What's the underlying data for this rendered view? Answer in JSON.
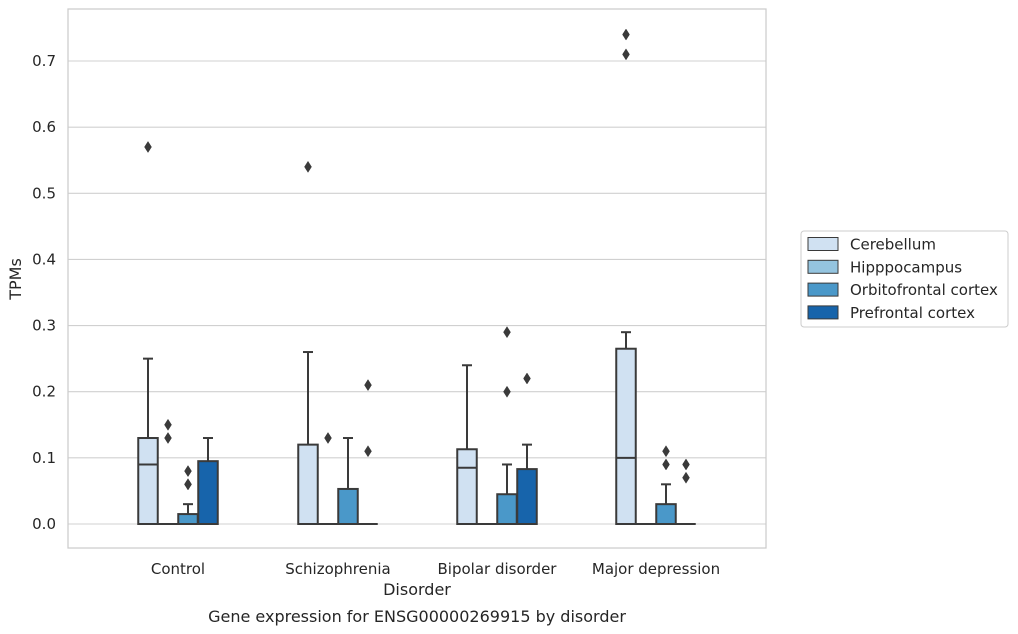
{
  "caption": "Gene expression for ENSG00000269915 by disorder",
  "chart_data": {
    "type": "box",
    "xlabel": "Disorder",
    "ylabel": "TPMs",
    "ylim": [
      -0.036,
      0.78
    ],
    "yticks": [
      "0.0",
      "0.1",
      "0.2",
      "0.3",
      "0.4",
      "0.5",
      "0.6",
      "0.7"
    ],
    "ytick_values": [
      0.0,
      0.1,
      0.2,
      0.3,
      0.4,
      0.5,
      0.6,
      0.7
    ],
    "grid": "horizontal",
    "legend_position": "right",
    "categories": [
      "Control",
      "Schizophrenia",
      "Bipolar disorder",
      "Major depression"
    ],
    "series": [
      {
        "name": "Cerebellum",
        "color": "#d0e1f2",
        "boxes": [
          {
            "q1": 0.0,
            "median": 0.09,
            "q3": 0.13,
            "whisker_low": 0.0,
            "whisker_high": 0.25,
            "outliers": [
              0.57
            ]
          },
          {
            "q1": 0.0,
            "median": 0.0,
            "q3": 0.12,
            "whisker_low": 0.0,
            "whisker_high": 0.26,
            "outliers": [
              0.54
            ]
          },
          {
            "q1": 0.0,
            "median": 0.085,
            "q3": 0.113,
            "whisker_low": 0.0,
            "whisker_high": 0.24,
            "outliers": []
          },
          {
            "q1": 0.0,
            "median": 0.1,
            "q3": 0.265,
            "whisker_low": 0.0,
            "whisker_high": 0.29,
            "outliers": [
              0.71,
              0.74
            ]
          }
        ]
      },
      {
        "name": "Hipppocampus",
        "color": "#94c4df",
        "boxes": [
          {
            "q1": 0.0,
            "median": 0.0,
            "q3": 0.0,
            "whisker_low": 0.0,
            "whisker_high": 0.0,
            "outliers": [
              0.13,
              0.15
            ]
          },
          {
            "q1": 0.0,
            "median": 0.0,
            "q3": 0.0,
            "whisker_low": 0.0,
            "whisker_high": 0.0,
            "outliers": [
              0.13
            ]
          },
          {
            "q1": 0.0,
            "median": 0.0,
            "q3": 0.0,
            "whisker_low": 0.0,
            "whisker_high": 0.0,
            "outliers": []
          },
          {
            "q1": 0.0,
            "median": 0.0,
            "q3": 0.0,
            "whisker_low": 0.0,
            "whisker_high": 0.0,
            "outliers": []
          }
        ]
      },
      {
        "name": "Orbitofrontal cortex",
        "color": "#4a98c9",
        "boxes": [
          {
            "q1": 0.0,
            "median": 0.0,
            "q3": 0.015,
            "whisker_low": 0.0,
            "whisker_high": 0.03,
            "outliers": [
              0.06,
              0.06,
              0.08
            ]
          },
          {
            "q1": 0.0,
            "median": 0.0,
            "q3": 0.053,
            "whisker_low": 0.0,
            "whisker_high": 0.13,
            "outliers": []
          },
          {
            "q1": 0.0,
            "median": 0.0,
            "q3": 0.045,
            "whisker_low": 0.0,
            "whisker_high": 0.09,
            "outliers": [
              0.2,
              0.29
            ]
          },
          {
            "q1": 0.0,
            "median": 0.0,
            "q3": 0.03,
            "whisker_low": 0.0,
            "whisker_high": 0.06,
            "outliers": [
              0.09,
              0.11
            ]
          }
        ]
      },
      {
        "name": "Prefrontal cortex",
        "color": "#1764ab",
        "boxes": [
          {
            "q1": 0.0,
            "median": 0.0,
            "q3": 0.095,
            "whisker_low": 0.0,
            "whisker_high": 0.13,
            "outliers": []
          },
          {
            "q1": 0.0,
            "median": 0.0,
            "q3": 0.0,
            "whisker_low": 0.0,
            "whisker_high": 0.0,
            "outliers": [
              0.11,
              0.21
            ]
          },
          {
            "q1": 0.0,
            "median": 0.0,
            "q3": 0.083,
            "whisker_low": 0.0,
            "whisker_high": 0.12,
            "outliers": [
              0.22
            ]
          },
          {
            "q1": 0.0,
            "median": 0.0,
            "q3": 0.0,
            "whisker_low": 0.0,
            "whisker_high": 0.0,
            "outliers": [
              0.07,
              0.09
            ]
          }
        ]
      }
    ]
  }
}
